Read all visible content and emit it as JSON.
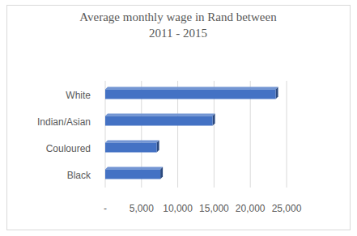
{
  "chart_data": {
    "type": "bar",
    "orientation": "horizontal",
    "title": "Average monthly wage in Rand between 2011 - 2015",
    "categories": [
      "Black",
      "Couloured",
      "Indian/Asian",
      "White"
    ],
    "values": [
      7600,
      7100,
      14800,
      23500
    ],
    "color": "#4472c4",
    "xlim": [
      0,
      25000
    ],
    "xticks": [
      {
        "value": 0,
        "label": "-"
      },
      {
        "value": 5000,
        "label": "5,000"
      },
      {
        "value": 10000,
        "label": "10,000"
      },
      {
        "value": 15000,
        "label": "15,000"
      },
      {
        "value": 20000,
        "label": "20,000"
      },
      {
        "value": 25000,
        "label": "25,000"
      }
    ],
    "grid": true
  }
}
